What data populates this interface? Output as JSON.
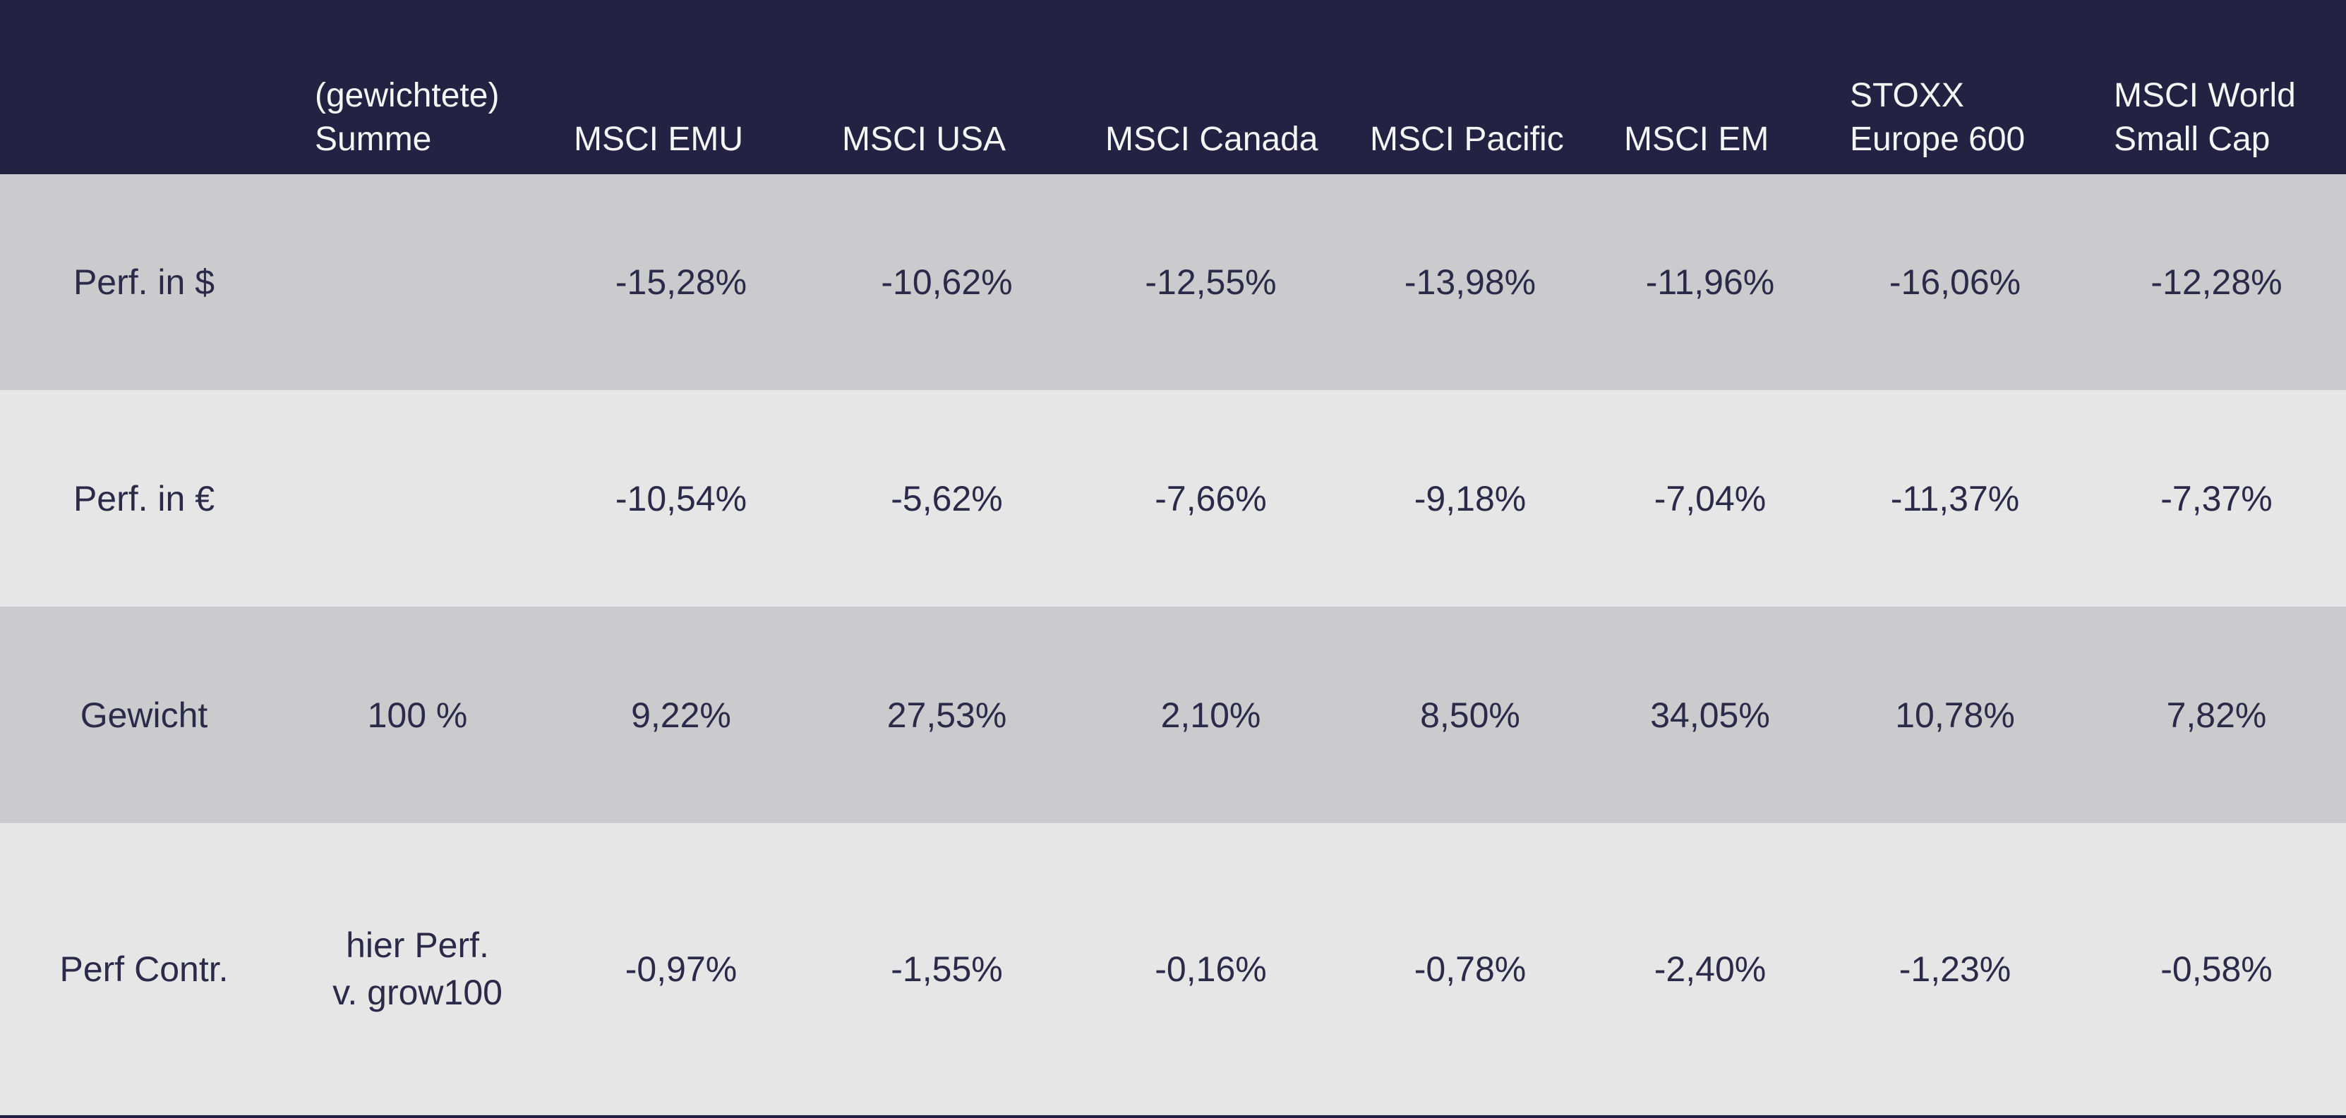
{
  "colors": {
    "header_background": "#232242",
    "header_text": "#f5f5f6",
    "row_shade_dark": "#cbcbce",
    "row_shade_light": "#e6e6e7",
    "cell_text": "#2b2a48",
    "bottom_bar": "#232242"
  },
  "chart_data": {
    "type": "table",
    "decimal_separator": "comma (German locale)",
    "columns": [
      {
        "id": "row-label",
        "header_line1": "",
        "header_line2": ""
      },
      {
        "id": "weighted-sum",
        "header_line1": "(gewichtete)",
        "header_line2": "Summe"
      },
      {
        "id": "msci-emu",
        "header_line1": "",
        "header_line2": "MSCI EMU"
      },
      {
        "id": "msci-usa",
        "header_line1": "",
        "header_line2": "MSCI USA"
      },
      {
        "id": "msci-canada",
        "header_line1": "",
        "header_line2": "MSCI Canada"
      },
      {
        "id": "msci-pacific",
        "header_line1": "",
        "header_line2": "MSCI Pacific"
      },
      {
        "id": "msci-em",
        "header_line1": "",
        "header_line2": "MSCI EM"
      },
      {
        "id": "stoxx-europe-600",
        "header_line1": "STOXX",
        "header_line2": "Europe 600"
      },
      {
        "id": "msci-world-small-cap",
        "header_line1": "MSCI World",
        "header_line2": "Small Cap"
      }
    ],
    "rows": [
      {
        "label": "Perf. in $",
        "summe": "",
        "values": [
          "-15,28%",
          "-10,62%",
          "-12,55%",
          "-13,98%",
          "-11,96%",
          "-16,06%",
          "-12,28%"
        ]
      },
      {
        "label": "Perf. in €",
        "summe": "",
        "values": [
          "-10,54%",
          "-5,62%",
          "-7,66%",
          "-9,18%",
          "-7,04%",
          "-11,37%",
          "-7,37%"
        ]
      },
      {
        "label": "Gewicht",
        "summe": "100 %",
        "values": [
          "9,22%",
          "27,53%",
          "2,10%",
          "8,50%",
          "34,05%",
          "10,78%",
          "7,82%"
        ]
      },
      {
        "label": "Perf Contr.",
        "summe_line1": "hier Perf.",
        "summe_line2": "v. grow100",
        "values": [
          "-0,97%",
          "-1,55%",
          "-0,16%",
          "-0,78%",
          "-2,40%",
          "-1,23%",
          "-0,58%"
        ]
      }
    ]
  }
}
